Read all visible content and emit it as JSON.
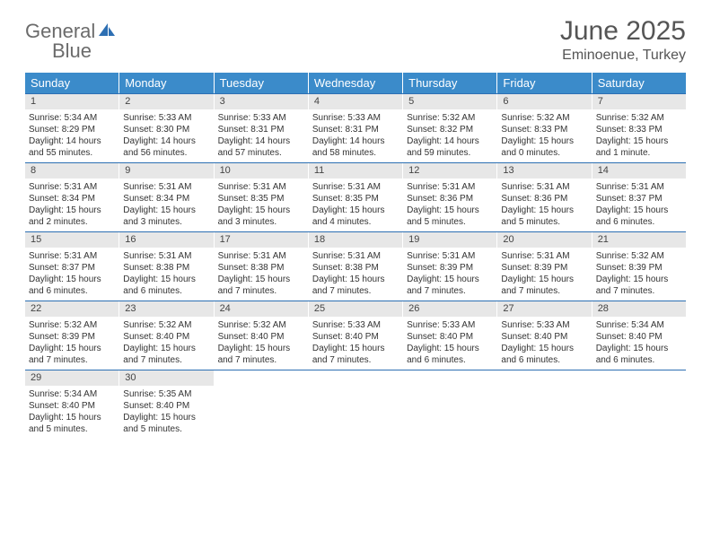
{
  "logo": {
    "part1": "General",
    "part2": "Blue"
  },
  "title": "June 2025",
  "location": "Eminoenue, Turkey",
  "colors": {
    "header_bg": "#3b8bca",
    "header_text": "#ffffff",
    "rule": "#2d6fb3",
    "daynum_bg": "#e7e7e7",
    "text": "#333333",
    "title_text": "#555555"
  },
  "dow": [
    "Sunday",
    "Monday",
    "Tuesday",
    "Wednesday",
    "Thursday",
    "Friday",
    "Saturday"
  ],
  "weeks": [
    [
      {
        "n": "1",
        "sr": "5:34 AM",
        "ss": "8:29 PM",
        "dl": "14 hours and 55 minutes."
      },
      {
        "n": "2",
        "sr": "5:33 AM",
        "ss": "8:30 PM",
        "dl": "14 hours and 56 minutes."
      },
      {
        "n": "3",
        "sr": "5:33 AM",
        "ss": "8:31 PM",
        "dl": "14 hours and 57 minutes."
      },
      {
        "n": "4",
        "sr": "5:33 AM",
        "ss": "8:31 PM",
        "dl": "14 hours and 58 minutes."
      },
      {
        "n": "5",
        "sr": "5:32 AM",
        "ss": "8:32 PM",
        "dl": "14 hours and 59 minutes."
      },
      {
        "n": "6",
        "sr": "5:32 AM",
        "ss": "8:33 PM",
        "dl": "15 hours and 0 minutes."
      },
      {
        "n": "7",
        "sr": "5:32 AM",
        "ss": "8:33 PM",
        "dl": "15 hours and 1 minute."
      }
    ],
    [
      {
        "n": "8",
        "sr": "5:31 AM",
        "ss": "8:34 PM",
        "dl": "15 hours and 2 minutes."
      },
      {
        "n": "9",
        "sr": "5:31 AM",
        "ss": "8:34 PM",
        "dl": "15 hours and 3 minutes."
      },
      {
        "n": "10",
        "sr": "5:31 AM",
        "ss": "8:35 PM",
        "dl": "15 hours and 3 minutes."
      },
      {
        "n": "11",
        "sr": "5:31 AM",
        "ss": "8:35 PM",
        "dl": "15 hours and 4 minutes."
      },
      {
        "n": "12",
        "sr": "5:31 AM",
        "ss": "8:36 PM",
        "dl": "15 hours and 5 minutes."
      },
      {
        "n": "13",
        "sr": "5:31 AM",
        "ss": "8:36 PM",
        "dl": "15 hours and 5 minutes."
      },
      {
        "n": "14",
        "sr": "5:31 AM",
        "ss": "8:37 PM",
        "dl": "15 hours and 6 minutes."
      }
    ],
    [
      {
        "n": "15",
        "sr": "5:31 AM",
        "ss": "8:37 PM",
        "dl": "15 hours and 6 minutes."
      },
      {
        "n": "16",
        "sr": "5:31 AM",
        "ss": "8:38 PM",
        "dl": "15 hours and 6 minutes."
      },
      {
        "n": "17",
        "sr": "5:31 AM",
        "ss": "8:38 PM",
        "dl": "15 hours and 7 minutes."
      },
      {
        "n": "18",
        "sr": "5:31 AM",
        "ss": "8:38 PM",
        "dl": "15 hours and 7 minutes."
      },
      {
        "n": "19",
        "sr": "5:31 AM",
        "ss": "8:39 PM",
        "dl": "15 hours and 7 minutes."
      },
      {
        "n": "20",
        "sr": "5:31 AM",
        "ss": "8:39 PM",
        "dl": "15 hours and 7 minutes."
      },
      {
        "n": "21",
        "sr": "5:32 AM",
        "ss": "8:39 PM",
        "dl": "15 hours and 7 minutes."
      }
    ],
    [
      {
        "n": "22",
        "sr": "5:32 AM",
        "ss": "8:39 PM",
        "dl": "15 hours and 7 minutes."
      },
      {
        "n": "23",
        "sr": "5:32 AM",
        "ss": "8:40 PM",
        "dl": "15 hours and 7 minutes."
      },
      {
        "n": "24",
        "sr": "5:32 AM",
        "ss": "8:40 PM",
        "dl": "15 hours and 7 minutes."
      },
      {
        "n": "25",
        "sr": "5:33 AM",
        "ss": "8:40 PM",
        "dl": "15 hours and 7 minutes."
      },
      {
        "n": "26",
        "sr": "5:33 AM",
        "ss": "8:40 PM",
        "dl": "15 hours and 6 minutes."
      },
      {
        "n": "27",
        "sr": "5:33 AM",
        "ss": "8:40 PM",
        "dl": "15 hours and 6 minutes."
      },
      {
        "n": "28",
        "sr": "5:34 AM",
        "ss": "8:40 PM",
        "dl": "15 hours and 6 minutes."
      }
    ],
    [
      {
        "n": "29",
        "sr": "5:34 AM",
        "ss": "8:40 PM",
        "dl": "15 hours and 5 minutes."
      },
      {
        "n": "30",
        "sr": "5:35 AM",
        "ss": "8:40 PM",
        "dl": "15 hours and 5 minutes."
      },
      null,
      null,
      null,
      null,
      null
    ]
  ],
  "labels": {
    "sunrise": "Sunrise: ",
    "sunset": "Sunset: ",
    "daylight": "Daylight: "
  }
}
